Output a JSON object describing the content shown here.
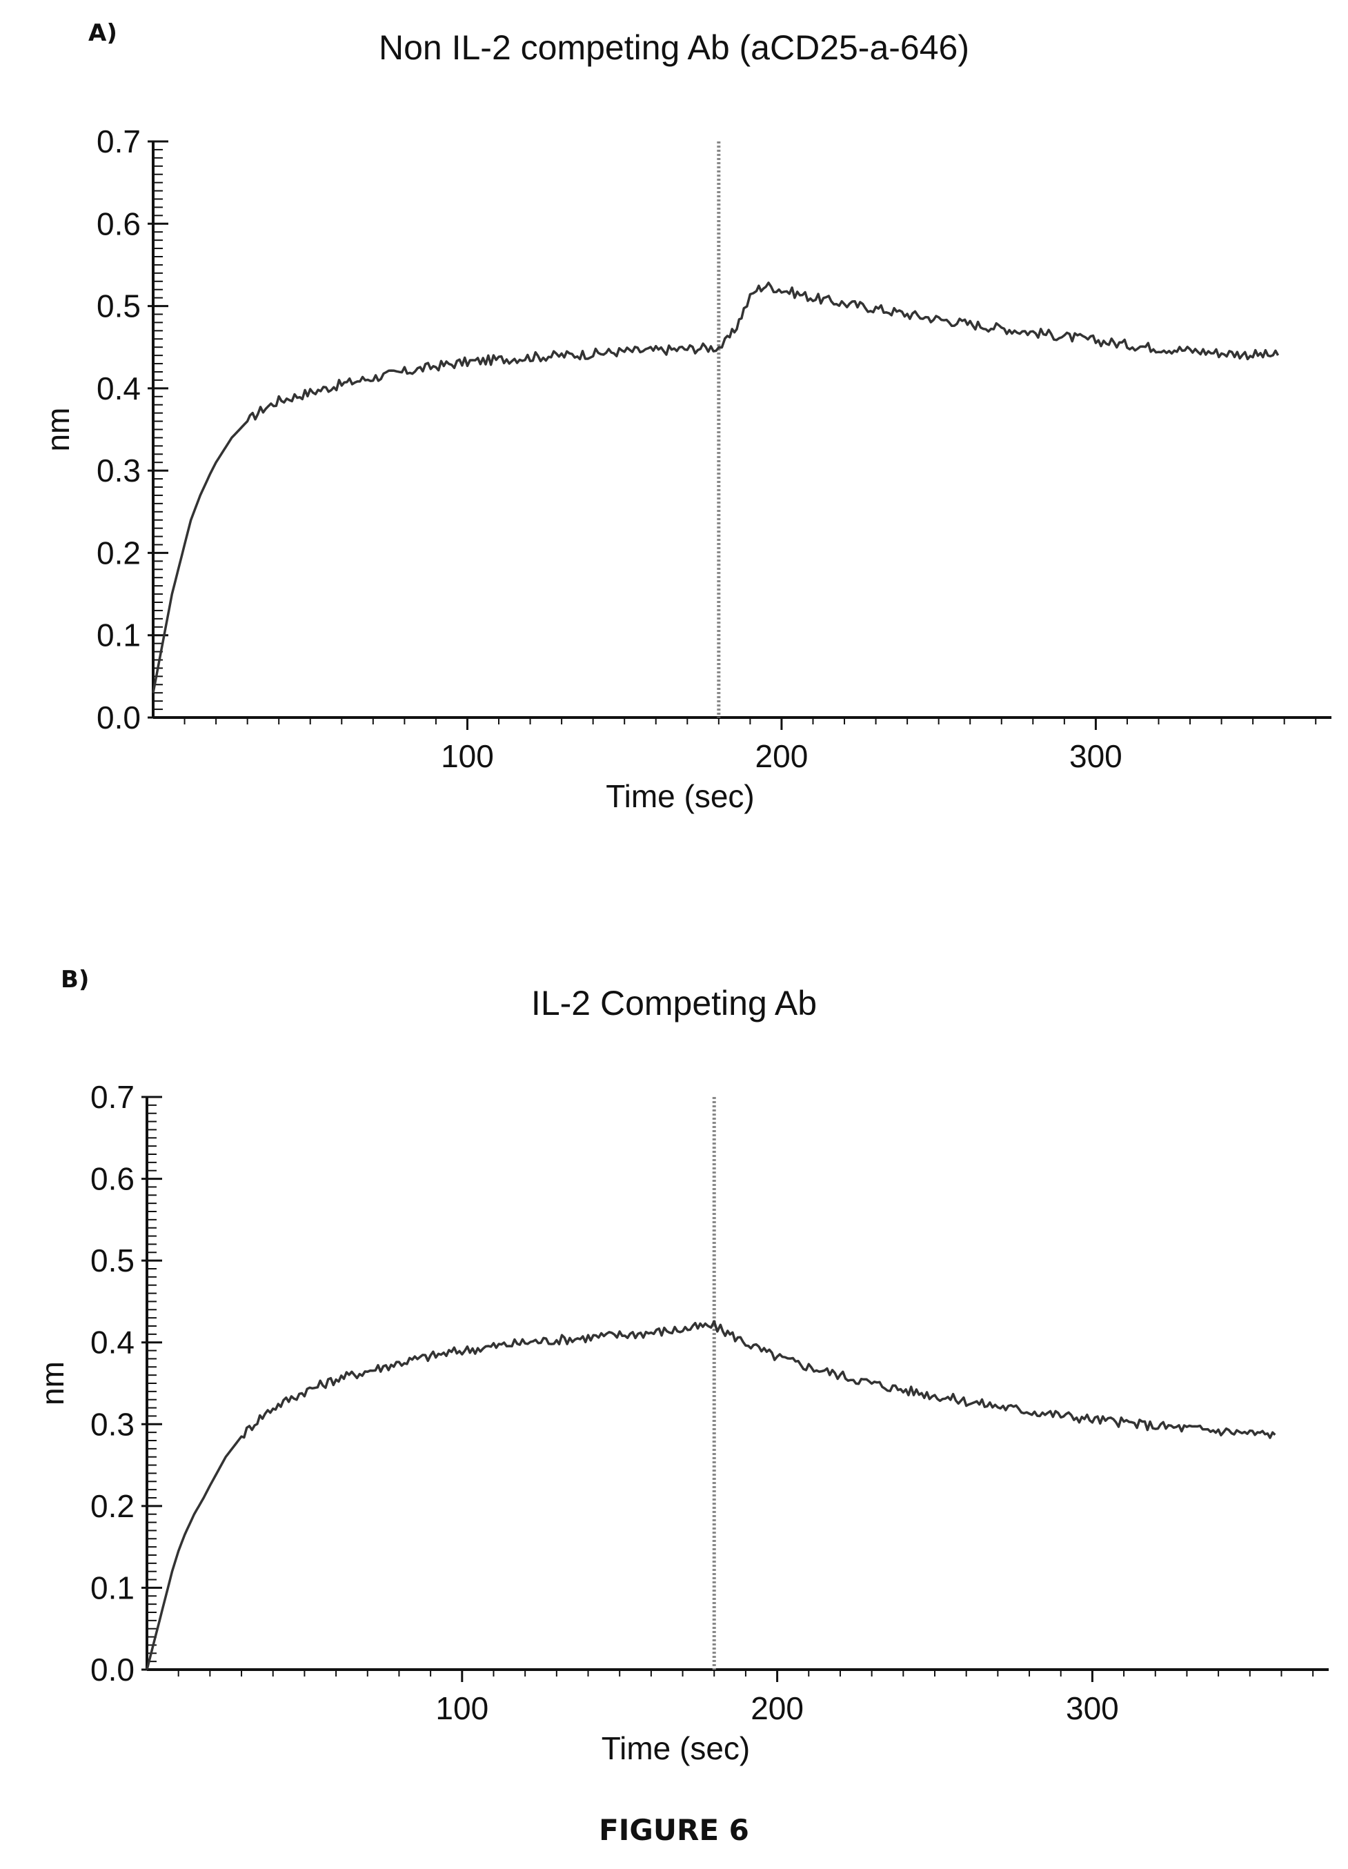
{
  "panels": [
    {
      "label": "A)",
      "title": "Non IL-2 competing Ab (aCD25-a-646)"
    },
    {
      "label": "B)",
      "title": "IL-2 Competing Ab"
    }
  ],
  "caption": "FIGURE 6",
  "chart_data": [
    {
      "type": "line",
      "title": "Non IL-2 competing Ab (aCD25-a-646)",
      "xlabel": "Time (sec)",
      "ylabel": "nm",
      "xlim": [
        0,
        375
      ],
      "ylim": [
        0,
        0.7
      ],
      "xticks": [
        100,
        200,
        300
      ],
      "yticks": [
        "0.0",
        "0.1",
        "0.2",
        "0.3",
        "0.4",
        "0.5",
        "0.6",
        "0.7"
      ],
      "grid": false,
      "marker_line_x": 180,
      "series": [
        {
          "x": [
            0,
            2,
            4,
            6,
            8,
            10,
            12,
            15,
            18,
            20,
            25,
            30,
            35,
            40,
            45,
            50,
            60,
            70,
            80,
            90,
            100,
            110,
            120,
            130,
            140,
            150,
            160,
            170,
            180,
            182,
            185,
            188,
            190,
            192,
            195,
            200,
            210,
            220,
            230,
            240,
            250,
            260,
            270,
            280,
            290,
            300,
            310,
            320,
            330,
            340,
            350,
            358
          ],
          "y": [
            0.03,
            0.07,
            0.11,
            0.15,
            0.18,
            0.21,
            0.24,
            0.27,
            0.295,
            0.31,
            0.34,
            0.36,
            0.375,
            0.385,
            0.39,
            0.395,
            0.405,
            0.413,
            0.42,
            0.427,
            0.432,
            0.435,
            0.438,
            0.44,
            0.442,
            0.445,
            0.446,
            0.448,
            0.45,
            0.455,
            0.47,
            0.495,
            0.51,
            0.52,
            0.525,
            0.52,
            0.51,
            0.503,
            0.497,
            0.49,
            0.484,
            0.478,
            0.473,
            0.468,
            0.463,
            0.458,
            0.453,
            0.449,
            0.446,
            0.443,
            0.441,
            0.44
          ]
        }
      ]
    },
    {
      "type": "line",
      "title": "IL-2 Competing Ab",
      "xlabel": "Time (sec)",
      "ylabel": "nm",
      "xlim": [
        0,
        375
      ],
      "ylim": [
        0,
        0.7
      ],
      "xticks": [
        100,
        200,
        300
      ],
      "yticks": [
        "0.0",
        "0.1",
        "0.2",
        "0.3",
        "0.4",
        "0.5",
        "0.6",
        "0.7"
      ],
      "grid": false,
      "marker_line_x": 180,
      "series": [
        {
          "x": [
            0,
            2,
            4,
            6,
            8,
            10,
            12,
            15,
            18,
            20,
            25,
            30,
            35,
            40,
            45,
            50,
            60,
            70,
            80,
            90,
            100,
            110,
            120,
            130,
            140,
            150,
            160,
            170,
            178,
            180,
            182,
            185,
            190,
            195,
            200,
            210,
            220,
            230,
            240,
            250,
            260,
            270,
            280,
            290,
            300,
            310,
            320,
            330,
            340,
            350,
            358
          ],
          "y": [
            0.0,
            0.03,
            0.06,
            0.09,
            0.12,
            0.145,
            0.165,
            0.19,
            0.21,
            0.225,
            0.26,
            0.285,
            0.305,
            0.32,
            0.33,
            0.34,
            0.355,
            0.365,
            0.375,
            0.383,
            0.39,
            0.395,
            0.4,
            0.403,
            0.406,
            0.409,
            0.412,
            0.416,
            0.42,
            0.42,
            0.416,
            0.41,
            0.4,
            0.39,
            0.382,
            0.37,
            0.36,
            0.35,
            0.342,
            0.335,
            0.328,
            0.322,
            0.316,
            0.311,
            0.306,
            0.302,
            0.298,
            0.295,
            0.292,
            0.289,
            0.287
          ]
        }
      ]
    }
  ]
}
